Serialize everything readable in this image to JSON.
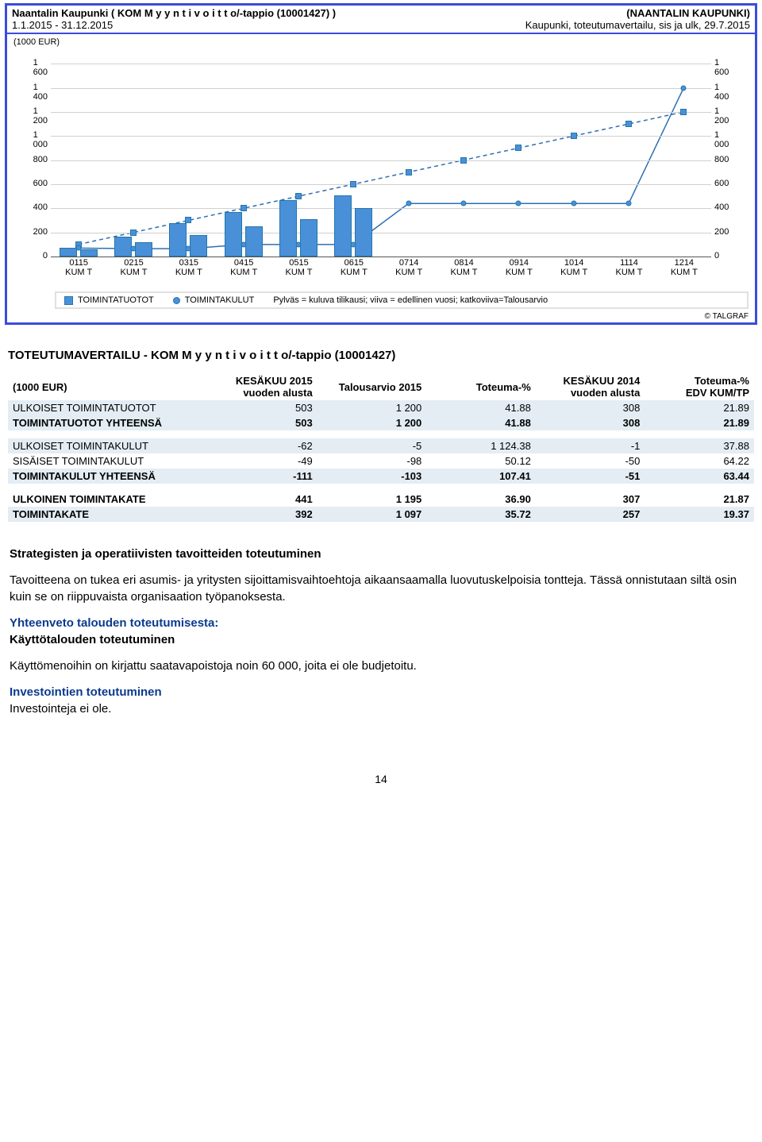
{
  "header": {
    "title_left": "Naantalin Kaupunki ( KOM M y y n t i v o i t t o/-tappio (10001427) )",
    "title_right": "(NAANTALIN KAUPUNKI)",
    "dates": "1.1.2015 - 31.12.2015",
    "subtitle_right": "Kaupunki, toteutumavertailu, sis ja ulk, 29.7.2015"
  },
  "chart": {
    "type": "bar+line",
    "unit_label": "(1000 EUR)",
    "background_color": "#ffffff",
    "grid_color": "#d0d0d0",
    "bar_color": "#4a90d9",
    "bar_border": "#2277aa",
    "line_color": "#2e6fb3",
    "ylim": [
      0,
      1700
    ],
    "yticks": [
      0,
      200,
      400,
      600,
      800,
      1000,
      1200,
      1400,
      1600
    ],
    "ytick_labels": [
      "0",
      "200",
      "400",
      "600",
      "800",
      "1 000",
      "1 200",
      "1 400",
      "1 600"
    ],
    "categories": [
      "0115\nKUM T",
      "0215\nKUM T",
      "0315\nKUM T",
      "0415\nKUM T",
      "0515\nKUM T",
      "0615\nKUM T",
      "0714\nKUM T",
      "0814\nKUM T",
      "0914\nKUM T",
      "1014\nKUM T",
      "1114\nKUM T",
      "1214\nKUM T"
    ],
    "bars_pair": [
      [
        70,
        60
      ],
      [
        165,
        120
      ],
      [
        280,
        180
      ],
      [
        370,
        250
      ],
      [
        470,
        310
      ],
      [
        505,
        400
      ]
    ],
    "dash_line": [
      100,
      200,
      300,
      400,
      500,
      600,
      700,
      800,
      900,
      1000,
      1100,
      1200
    ],
    "solid_line": [
      70,
      65,
      65,
      100,
      100,
      100,
      440,
      440,
      440,
      440,
      440,
      1400
    ],
    "legend": {
      "t1_label": "TOIMINTATUOTOT",
      "t2_label": "TOIMINTAKULUT",
      "desc": "Pylväs = kuluva tilikausi; viiva = edellinen vuosi; katkoviiva=Talousarvio"
    },
    "copyright": "© TALGRAF"
  },
  "table": {
    "title": "TOTEUTUMAVERTAILU - KOM M y y n t i v o i t t o/-tappio (10001427)",
    "unit": "(1000 EUR)",
    "columns": [
      "KESÄKUU 2015\nvuoden alusta",
      "Talousarvio 2015",
      "Toteuma-%",
      "KESÄKUU 2014\nvuoden alusta",
      "Toteuma-%\nEDV KUM/TP"
    ],
    "rows": [
      {
        "label": "ULKOISET TOIMINTATUOTOT",
        "v": [
          "503",
          "1 200",
          "41.88",
          "308",
          "21.89"
        ],
        "striped": true
      },
      {
        "label": "TOIMINTATUOTOT YHTEENSÄ",
        "v": [
          "503",
          "1 200",
          "41.88",
          "308",
          "21.89"
        ],
        "striped": true,
        "bold": true
      },
      {
        "spacer": true
      },
      {
        "label": "ULKOISET TOIMINTAKULUT",
        "v": [
          "-62",
          "-5",
          "1 124.38",
          "-1",
          "37.88"
        ],
        "striped": true
      },
      {
        "label": "SISÄISET TOIMINTAKULUT",
        "v": [
          "-49",
          "-98",
          "50.12",
          "-50",
          "64.22"
        ]
      },
      {
        "label": "TOIMINTAKULUT YHTEENSÄ",
        "v": [
          "-111",
          "-103",
          "107.41",
          "-51",
          "63.44"
        ],
        "striped": true,
        "bold": true
      },
      {
        "spacer": true
      },
      {
        "label": "ULKOINEN TOIMINTAKATE",
        "v": [
          "441",
          "1 195",
          "36.90",
          "307",
          "21.87"
        ],
        "bold": true
      },
      {
        "label": "TOIMINTAKATE",
        "v": [
          "392",
          "1 097",
          "35.72",
          "257",
          "19.37"
        ],
        "striped": true,
        "bold": true
      }
    ]
  },
  "prose": {
    "h1": "Strategisten ja operatiivisten tavoitteiden toteutuminen",
    "p1": "Tavoitteena on tukea eri asumis- ja yritysten sijoittamisvaihtoehtoja aikaansaamalla luovutuskelpoisia tontteja. Tässä onnistutaan siltä osin kuin se on riippuvaista organisaation työpanoksesta.",
    "h2": "Yhteenveto talouden toteutumisesta:",
    "h3": "Käyttötalouden toteutuminen",
    "p2": "Käyttömenoihin on kirjattu saatavapoistoja noin 60 000, joita ei ole budjetoitu.",
    "h4": "Investointien toteutuminen",
    "p3": "Investointeja ei ole."
  },
  "page_number": "14"
}
